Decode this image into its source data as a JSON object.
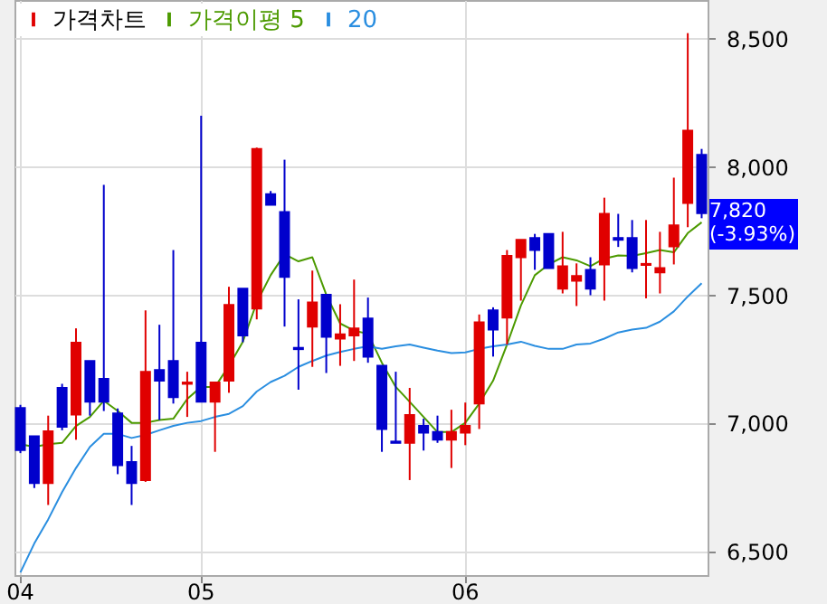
{
  "chart_data": {
    "type": "candlestick",
    "categories": [
      "04",
      null,
      null,
      null,
      null,
      null,
      null,
      null,
      null,
      null,
      null,
      null,
      null,
      "05",
      null,
      null,
      null,
      null,
      null,
      null,
      null,
      null,
      null,
      null,
      null,
      null,
      null,
      null,
      null,
      null,
      null,
      null,
      "06",
      null,
      null,
      null,
      null,
      null,
      null,
      null,
      null,
      null,
      null,
      null,
      null,
      null,
      null,
      null,
      null,
      null
    ],
    "series": [
      {
        "name": "가격차트",
        "color": "#e00000",
        "colors": [
          "#0000cc",
          "#0000cc",
          "#e00000",
          "#0000cc",
          "#e00000",
          "#0000cc",
          "#0000cc",
          "#0000cc",
          "#0000cc",
          "#e00000",
          "#0000cc",
          "#0000cc",
          "#e00000",
          "#0000cc",
          "#e00000",
          "#e00000",
          "#0000cc",
          "#e00000",
          "#0000cc",
          "#0000cc",
          "#0000cc",
          "#e00000",
          "#0000cc",
          "#e00000",
          "#e00000",
          "#0000cc",
          "#0000cc",
          "#0000cc",
          "#e00000",
          "#0000cc",
          "#0000cc",
          "#e00000",
          "#e00000",
          "#e00000",
          "#0000cc",
          "#e00000",
          "#e00000",
          "#0000cc",
          "#0000cc",
          "#e00000",
          "#e00000",
          "#0000cc",
          "#e00000",
          "#0000cc",
          "#0000cc",
          "#e00000",
          "#e00000",
          "#e00000",
          "#e00000",
          "#0000cc"
        ],
        "ohlc": [
          [
            7061,
            7073,
            6885,
            6897
          ],
          [
            6951,
            6951,
            6749,
            6768
          ],
          [
            6768,
            7031,
            6683,
            6970
          ],
          [
            7139,
            7155,
            6974,
            6988
          ],
          [
            7035,
            7371,
            6937,
            7315
          ],
          [
            7244,
            7244,
            7031,
            7085
          ],
          [
            7174,
            7930,
            7049,
            7085
          ],
          [
            7040,
            7059,
            6803,
            6838
          ],
          [
            6850,
            6913,
            6683,
            6768
          ],
          [
            6780,
            7441,
            6773,
            7202
          ],
          [
            7209,
            7385,
            7014,
            7167
          ],
          [
            7244,
            7676,
            7078,
            7103
          ],
          [
            7155,
            7202,
            7026,
            7160
          ],
          [
            7315,
            8199,
            7085,
            7085
          ],
          [
            7085,
            7160,
            6890,
            7160
          ],
          [
            7167,
            7533,
            7120,
            7462
          ],
          [
            7526,
            7526,
            7317,
            7343
          ],
          [
            7448,
            8075,
            7406,
            8070
          ],
          [
            7894,
            7906,
            7852,
            7852
          ],
          [
            7824,
            8028,
            7378,
            7571
          ],
          [
            7295,
            7484,
            7132,
            7290
          ],
          [
            7378,
            7596,
            7221,
            7472
          ],
          [
            7502,
            7502,
            7197,
            7338
          ],
          [
            7331,
            7465,
            7225,
            7348
          ],
          [
            7343,
            7561,
            7244,
            7371
          ],
          [
            7409,
            7491,
            7237,
            7261
          ],
          [
            7225,
            7225,
            6890,
            6979
          ],
          [
            6930,
            7202,
            6925,
            6925
          ],
          [
            6925,
            7139,
            6780,
            7033
          ],
          [
            6991,
            7019,
            6895,
            6965
          ],
          [
            6967,
            7031,
            6925,
            6937
          ],
          [
            6937,
            7054,
            6827,
            6967
          ],
          [
            6965,
            7082,
            6916,
            6991
          ],
          [
            7078,
            7425,
            6979,
            7394
          ],
          [
            7441,
            7453,
            7261,
            7366
          ],
          [
            7413,
            7676,
            7308,
            7653
          ],
          [
            7648,
            7716,
            7479,
            7716
          ],
          [
            7723,
            7739,
            7599,
            7676
          ],
          [
            7739,
            7739,
            7606,
            7606
          ],
          [
            7526,
            7747,
            7507,
            7613
          ],
          [
            7556,
            7624,
            7458,
            7575
          ],
          [
            7599,
            7648,
            7500,
            7526
          ],
          [
            7620,
            7880,
            7479,
            7817
          ],
          [
            7723,
            7817,
            7688,
            7716
          ],
          [
            7723,
            7793,
            7589,
            7606
          ],
          [
            7618,
            7793,
            7488,
            7622
          ],
          [
            7589,
            7747,
            7507,
            7606
          ],
          [
            7690,
            7958,
            7620,
            7772
          ],
          [
            7859,
            8521,
            7765,
            8141
          ],
          [
            8047,
            8070,
            7800,
            7820
          ]
        ]
      },
      {
        "name": "가격이평 5",
        "type": "line",
        "color": "#4c9a00",
        "values": [
          6920,
          6909,
          6920,
          6925,
          6991,
          7026,
          7089,
          7049,
          7003,
          7003,
          7014,
          7019,
          7096,
          7143,
          7143,
          7225,
          7319,
          7472,
          7578,
          7660,
          7632,
          7648,
          7502,
          7390,
          7362,
          7350,
          7237,
          7143,
          7085,
          7026,
          6967,
          6967,
          7003,
          7078,
          7167,
          7308,
          7460,
          7578,
          7620,
          7648,
          7636,
          7613,
          7643,
          7655,
          7653,
          7664,
          7676,
          7667,
          7742,
          7784
        ]
      },
      {
        "name": "20",
        "type": "line",
        "color": "#2a8ee0",
        "values": [
          6420,
          6533,
          6627,
          6733,
          6827,
          6909,
          6960,
          6960,
          6944,
          6956,
          6974,
          6991,
          7003,
          7010,
          7026,
          7038,
          7068,
          7125,
          7162,
          7186,
          7221,
          7244,
          7265,
          7279,
          7291,
          7301,
          7291,
          7301,
          7308,
          7296,
          7284,
          7275,
          7277,
          7291,
          7301,
          7308,
          7319,
          7303,
          7291,
          7291,
          7308,
          7312,
          7331,
          7355,
          7366,
          7373,
          7397,
          7437,
          7495,
          7547
        ]
      }
    ],
    "ylim": [
      6410,
      8650
    ],
    "yticks": [
      {
        "value": 6500,
        "label": "6,500"
      },
      {
        "value": 7000,
        "label": "7,000"
      },
      {
        "value": 7500,
        "label": "7,500"
      },
      {
        "value": 8000,
        "label": "8,000"
      },
      {
        "value": 8500,
        "label": "8,500"
      }
    ],
    "annotations": [
      "7,820 (-3.93%)"
    ],
    "grid": true,
    "legend": "top left"
  }
}
